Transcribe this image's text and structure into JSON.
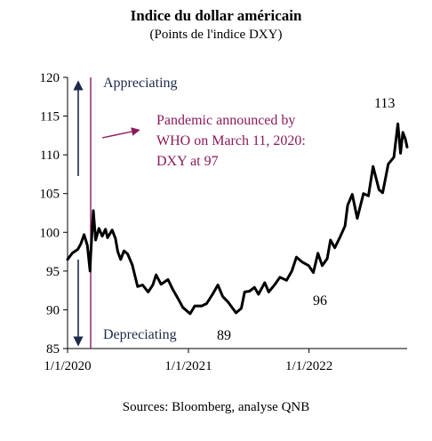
{
  "title": "Indice du dollar américain",
  "subtitle": "(Points de l'indice DXY)",
  "source": "Sources: Bloomberg, analyse QNB",
  "colors": {
    "series": "#000000",
    "arrow": "#1f2a4a",
    "pandemic": "#8a1a5a"
  },
  "annotations": {
    "appreciating": "Appreciating",
    "depreciating": "Depreciating",
    "pandemic_line1": "Pandemic announced by",
    "pandemic_line2": "WHO on March 11, 2020:",
    "pandemic_line3": "DXY at 97",
    "label_113": "113",
    "label_96": "96",
    "label_89": "89"
  },
  "chart_data": {
    "type": "line",
    "title": "Indice du dollar américain",
    "subtitle": "(Points de l'indice DXY)",
    "xlabel": "",
    "ylabel": "",
    "ylim": [
      85,
      120
    ],
    "yticks": [
      "85",
      "90",
      "95",
      "100",
      "105",
      "110",
      "115",
      "120"
    ],
    "xticks": [
      {
        "label": "1/1/2020",
        "date": "2020-01-01"
      },
      {
        "label": "1/1/2021",
        "date": "2021-01-01"
      },
      {
        "label": "1/1/2022",
        "date": "2022-01-01"
      }
    ],
    "xlim": [
      "2020-01-01",
      "2022-10-25"
    ],
    "grid": false,
    "pandemic_marker": {
      "date": "2020-03-11",
      "value": 97
    },
    "series": [
      {
        "points": [
          [
            "2020-01-01",
            96.5
          ],
          [
            "2020-01-15",
            97.3
          ],
          [
            "2020-02-01",
            97.8
          ],
          [
            "2020-02-10",
            98.5
          ],
          [
            "2020-02-20",
            99.7
          ],
          [
            "2020-03-01",
            98.3
          ],
          [
            "2020-03-09",
            95.0
          ],
          [
            "2020-03-11",
            97.0
          ],
          [
            "2020-03-19",
            102.8
          ],
          [
            "2020-03-26",
            99.0
          ],
          [
            "2020-04-05",
            100.5
          ],
          [
            "2020-04-15",
            99.5
          ],
          [
            "2020-04-25",
            100.4
          ],
          [
            "2020-05-01",
            99.3
          ],
          [
            "2020-05-15",
            100.3
          ],
          [
            "2020-05-25",
            99.2
          ],
          [
            "2020-06-01",
            97.5
          ],
          [
            "2020-06-10",
            96.5
          ],
          [
            "2020-06-20",
            97.6
          ],
          [
            "2020-07-01",
            97.2
          ],
          [
            "2020-07-15",
            95.8
          ],
          [
            "2020-07-31",
            93.0
          ],
          [
            "2020-08-15",
            93.2
          ],
          [
            "2020-09-01",
            92.3
          ],
          [
            "2020-09-15",
            93.2
          ],
          [
            "2020-09-25",
            94.5
          ],
          [
            "2020-10-10",
            93.3
          ],
          [
            "2020-10-31",
            93.9
          ],
          [
            "2020-11-15",
            92.6
          ],
          [
            "2020-12-01",
            91.4
          ],
          [
            "2020-12-15",
            90.3
          ],
          [
            "2021-01-06",
            89.5
          ],
          [
            "2021-01-20",
            90.5
          ],
          [
            "2021-02-10",
            90.5
          ],
          [
            "2021-02-25",
            90.8
          ],
          [
            "2021-03-15",
            92.0
          ],
          [
            "2021-03-31",
            93.2
          ],
          [
            "2021-04-15",
            91.7
          ],
          [
            "2021-05-01",
            91.0
          ],
          [
            "2021-05-25",
            89.6
          ],
          [
            "2021-06-10",
            90.2
          ],
          [
            "2021-06-20",
            92.3
          ],
          [
            "2021-07-05",
            92.4
          ],
          [
            "2021-07-20",
            92.9
          ],
          [
            "2021-08-01",
            92.0
          ],
          [
            "2021-08-20",
            93.5
          ],
          [
            "2021-09-01",
            92.3
          ],
          [
            "2021-09-20",
            93.3
          ],
          [
            "2021-10-05",
            94.2
          ],
          [
            "2021-10-25",
            93.8
          ],
          [
            "2021-11-10",
            95.0
          ],
          [
            "2021-11-24",
            96.8
          ],
          [
            "2021-12-10",
            96.2
          ],
          [
            "2021-12-31",
            95.7
          ],
          [
            "2022-01-14",
            94.8
          ],
          [
            "2022-01-28",
            97.3
          ],
          [
            "2022-02-10",
            95.7
          ],
          [
            "2022-02-25",
            96.6
          ],
          [
            "2022-03-07",
            99.0
          ],
          [
            "2022-03-20",
            98.0
          ],
          [
            "2022-04-05",
            99.4
          ],
          [
            "2022-04-20",
            100.8
          ],
          [
            "2022-04-28",
            103.5
          ],
          [
            "2022-05-12",
            104.9
          ],
          [
            "2022-05-27",
            101.8
          ],
          [
            "2022-06-15",
            105.0
          ],
          [
            "2022-06-30",
            104.7
          ],
          [
            "2022-07-14",
            108.5
          ],
          [
            "2022-08-01",
            105.5
          ],
          [
            "2022-08-12",
            105.1
          ],
          [
            "2022-08-29",
            108.8
          ],
          [
            "2022-09-15",
            109.7
          ],
          [
            "2022-09-27",
            114.0
          ],
          [
            "2022-10-05",
            110.2
          ],
          [
            "2022-10-12",
            112.9
          ],
          [
            "2022-10-20",
            112.0
          ],
          [
            "2022-10-25",
            111.0
          ]
        ]
      }
    ]
  }
}
